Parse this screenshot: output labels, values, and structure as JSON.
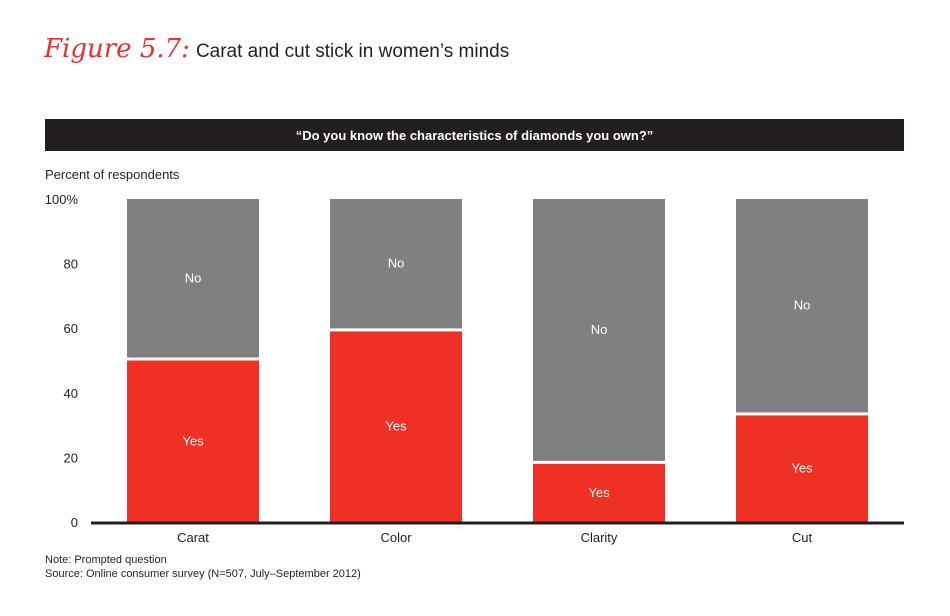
{
  "figure": {
    "label": "Figure 5.7:",
    "title": "Carat and cut stick in women’s minds"
  },
  "banner": "“Do you know the characteristics of diamonds you own?”",
  "notes": {
    "note": "Note: Prompted question",
    "source": "Source: Online consumer survey (N=507, July–September 2012)"
  },
  "colors": {
    "yes": "#ee3124",
    "no": "#808080",
    "axis": "#231f20",
    "banner_bg": "#231f20"
  },
  "chart_data": {
    "type": "bar",
    "stacked": true,
    "ylabel": "Percent of respondents",
    "ylim": [
      0,
      100
    ],
    "yticks": [
      "0",
      "20",
      "40",
      "60",
      "80",
      "100%"
    ],
    "categories": [
      "Carat",
      "Color",
      "Clarity",
      "Cut"
    ],
    "series": [
      {
        "name": "Yes",
        "values": [
          50,
          59,
          18,
          33
        ]
      },
      {
        "name": "No",
        "values": [
          50,
          41,
          82,
          67
        ]
      }
    ]
  }
}
